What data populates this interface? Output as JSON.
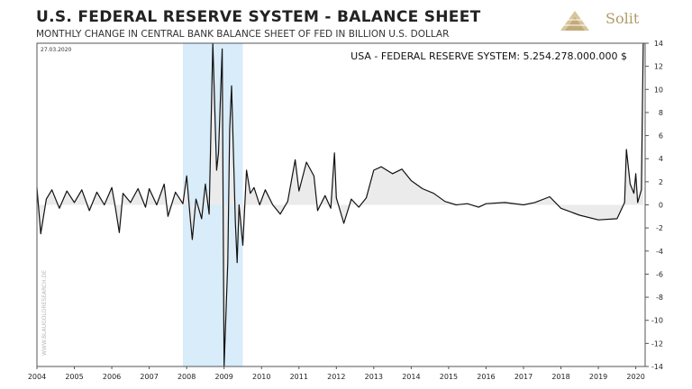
{
  "header": {
    "title": "U.S. FEDERAL RESERVE SYSTEM - BALANCE SHEET",
    "subtitle": "MONTHLY CHANGE IN CENTRAL BANK BALANCE SHEET OF FED IN BILLION U.S. DOLLAR",
    "logo_text": "Solit"
  },
  "colors": {
    "line": "#111111",
    "fill": "#ebebeb",
    "recession": "#d8ecfa",
    "logo": "#b29a6a"
  },
  "chart_data": {
    "type": "line",
    "title": "U.S. FEDERAL RESERVE SYSTEM - BALANCE SHEET",
    "subtitle": "MONTHLY CHANGE IN CENTRAL BANK BALANCE SHEET OF FED IN BILLION U.S. DOLLAR",
    "date_stamp": "27.03.2020",
    "annotation": "USA - FEDERAL RESERVE SYSTEM: 5.254.278.000.000 $",
    "watermark": "WWW.BLAUGOLDRESEARCH.DE",
    "xlim": [
      2004,
      2020.25
    ],
    "ylim": [
      -14,
      14
    ],
    "x_ticks": [
      "2004",
      "2005",
      "2006",
      "2007",
      "2008",
      "2009",
      "2010",
      "2011",
      "2012",
      "2013",
      "2014",
      "2015",
      "2016",
      "2017",
      "2018",
      "2019",
      "2020"
    ],
    "y_ticks": [
      "14",
      "12",
      "10",
      "8",
      "6",
      "4",
      "2",
      "0",
      "-2",
      "-4",
      "-6",
      "-8",
      "-10",
      "-12",
      "-14"
    ],
    "y_axis_side": "right",
    "shaded_period": {
      "label": "recession",
      "start": 2007.9,
      "end": 2009.5
    },
    "series": [
      {
        "points": [
          [
            2004.0,
            1.5
          ],
          [
            2004.1,
            -2.5
          ],
          [
            2004.25,
            0.5
          ],
          [
            2004.4,
            1.3
          ],
          [
            2004.6,
            -0.3
          ],
          [
            2004.8,
            1.2
          ],
          [
            2005.0,
            0.2
          ],
          [
            2005.2,
            1.3
          ],
          [
            2005.4,
            -0.5
          ],
          [
            2005.6,
            1.1
          ],
          [
            2005.8,
            0.0
          ],
          [
            2006.0,
            1.5
          ],
          [
            2006.1,
            -0.3
          ],
          [
            2006.2,
            -2.4
          ],
          [
            2006.3,
            1.0
          ],
          [
            2006.5,
            0.2
          ],
          [
            2006.7,
            1.4
          ],
          [
            2006.9,
            -0.2
          ],
          [
            2007.0,
            1.4
          ],
          [
            2007.2,
            0.0
          ],
          [
            2007.4,
            1.8
          ],
          [
            2007.5,
            -1.0
          ],
          [
            2007.7,
            1.1
          ],
          [
            2007.9,
            0.1
          ],
          [
            2008.0,
            2.5
          ],
          [
            2008.1,
            -1.3
          ],
          [
            2008.15,
            -3.0
          ],
          [
            2008.25,
            0.5
          ],
          [
            2008.4,
            -1.2
          ],
          [
            2008.5,
            1.8
          ],
          [
            2008.6,
            -0.8
          ],
          [
            2008.7,
            14.0
          ],
          [
            2008.8,
            3.0
          ],
          [
            2008.85,
            4.5
          ],
          [
            2008.95,
            13.5
          ],
          [
            2009.0,
            -14.0
          ],
          [
            2009.1,
            -5.0
          ],
          [
            2009.15,
            6.5
          ],
          [
            2009.2,
            10.3
          ],
          [
            2009.3,
            -1.5
          ],
          [
            2009.35,
            -5.0
          ],
          [
            2009.4,
            0.0
          ],
          [
            2009.5,
            -3.5
          ],
          [
            2009.6,
            3.0
          ],
          [
            2009.7,
            1.0
          ],
          [
            2009.8,
            1.5
          ],
          [
            2009.95,
            0.0
          ],
          [
            2010.1,
            1.3
          ],
          [
            2010.3,
            0.0
          ],
          [
            2010.5,
            -0.8
          ],
          [
            2010.7,
            0.3
          ],
          [
            2010.9,
            3.9
          ],
          [
            2011.0,
            1.2
          ],
          [
            2011.2,
            3.7
          ],
          [
            2011.4,
            2.5
          ],
          [
            2011.5,
            -0.5
          ],
          [
            2011.7,
            0.8
          ],
          [
            2011.85,
            -0.3
          ],
          [
            2011.95,
            4.5
          ],
          [
            2012.0,
            0.6
          ],
          [
            2012.2,
            -1.6
          ],
          [
            2012.4,
            0.5
          ],
          [
            2012.6,
            -0.2
          ],
          [
            2012.8,
            0.6
          ],
          [
            2013.0,
            3.0
          ],
          [
            2013.2,
            3.3
          ],
          [
            2013.5,
            2.7
          ],
          [
            2013.75,
            3.1
          ],
          [
            2014.0,
            2.1
          ],
          [
            2014.3,
            1.4
          ],
          [
            2014.6,
            1.0
          ],
          [
            2014.9,
            0.3
          ],
          [
            2015.2,
            0.0
          ],
          [
            2015.5,
            0.1
          ],
          [
            2015.8,
            -0.2
          ],
          [
            2016.0,
            0.1
          ],
          [
            2016.5,
            0.2
          ],
          [
            2017.0,
            0.0
          ],
          [
            2017.3,
            0.2
          ],
          [
            2017.7,
            0.7
          ],
          [
            2018.0,
            -0.3
          ],
          [
            2018.5,
            -0.9
          ],
          [
            2019.0,
            -1.3
          ],
          [
            2019.5,
            -1.2
          ],
          [
            2019.7,
            0.2
          ],
          [
            2019.75,
            4.8
          ],
          [
            2019.85,
            1.8
          ],
          [
            2019.95,
            1.0
          ],
          [
            2020.0,
            2.7
          ],
          [
            2020.05,
            0.2
          ],
          [
            2020.15,
            1.3
          ],
          [
            2020.2,
            14.0
          ]
        ]
      }
    ],
    "grid": false
  }
}
